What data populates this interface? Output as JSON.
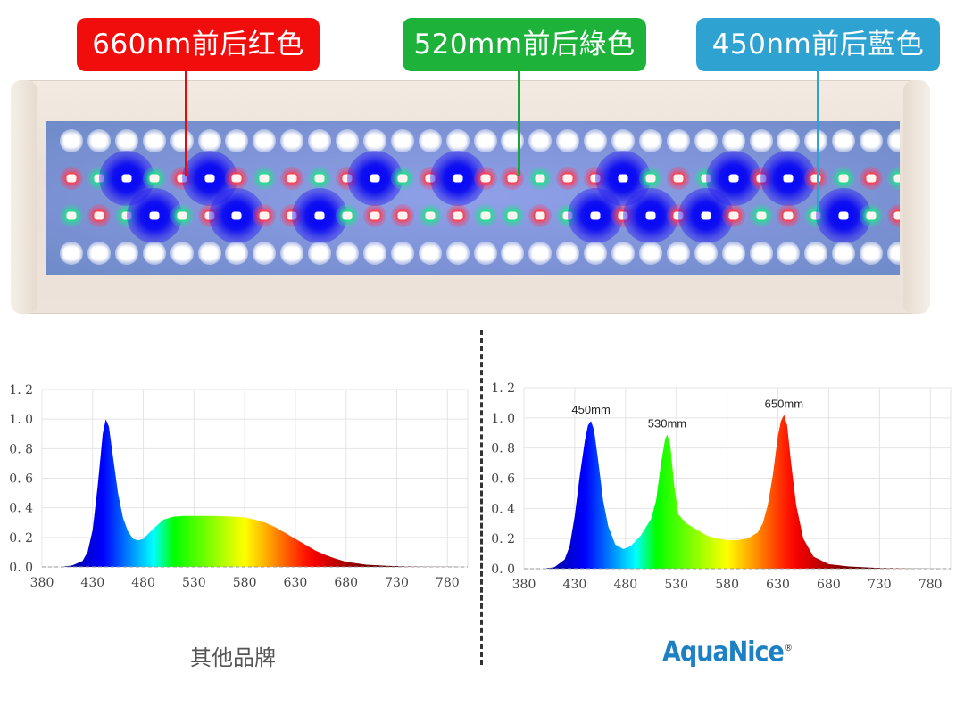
{
  "callouts": [
    {
      "label": "660nm前后红色",
      "color": "#f20d0d",
      "target": "red-led"
    },
    {
      "label": "520mm前后綠色",
      "color": "#1db23a",
      "target": "green-led"
    },
    {
      "label": "450nm前后藍色",
      "color": "#2ea3d2",
      "target": "blue-led"
    }
  ],
  "fixture": {
    "rows": {
      "row1": "WWWWWWWWWWWWWWWWWWWWWWWWWWWWWWW",
      "row2": "RGBGRBRGRGRBGRBRRGRRBGRGBRBRGRG",
      "row3": "GRGBGRBRRBGRRGRGGRGBRBRBRGRGBGR",
      "row4": "WWWWWWWWWWWWWWWWWWWWWWWWWWWWWWW"
    },
    "led_colors": {
      "W": "#ffffff",
      "R": "#ff3a4a",
      "G": "#22e08a",
      "B": "#1010ff"
    }
  },
  "captions": {
    "left": "其他品牌",
    "right_logo": "AquaNice",
    "right_logo_mark": "®"
  },
  "chart_data": [
    {
      "type": "area",
      "title": "其他品牌",
      "xlabel": "",
      "ylabel": "",
      "xlim": [
        380,
        800
      ],
      "ylim": [
        0,
        1.2
      ],
      "x_ticks": [
        380,
        430,
        480,
        530,
        580,
        630,
        680,
        730,
        780
      ],
      "y_ticks": [
        "0.0",
        "0.2",
        "0.4",
        "0.6",
        "0.8",
        "1.0",
        "1.2"
      ],
      "grid": true,
      "x": [
        380,
        400,
        410,
        420,
        425,
        430,
        435,
        440,
        443,
        446,
        450,
        455,
        460,
        465,
        470,
        475,
        480,
        490,
        500,
        510,
        520,
        530,
        550,
        570,
        580,
        590,
        600,
        610,
        620,
        630,
        640,
        650,
        660,
        670,
        680,
        700,
        720,
        740,
        760,
        800
      ],
      "values": [
        0,
        0,
        0.01,
        0.04,
        0.1,
        0.25,
        0.55,
        0.9,
        1.0,
        0.95,
        0.75,
        0.5,
        0.33,
        0.24,
        0.19,
        0.18,
        0.19,
        0.26,
        0.32,
        0.34,
        0.345,
        0.345,
        0.345,
        0.34,
        0.335,
        0.32,
        0.3,
        0.27,
        0.23,
        0.19,
        0.15,
        0.11,
        0.08,
        0.055,
        0.035,
        0.015,
        0.008,
        0.003,
        0.001,
        0
      ]
    },
    {
      "type": "area",
      "title": "AquaNice",
      "xlabel": "",
      "ylabel": "",
      "xlim": [
        380,
        800
      ],
      "ylim": [
        0,
        1.2
      ],
      "x_ticks": [
        380,
        430,
        480,
        530,
        580,
        630,
        680,
        730,
        780
      ],
      "y_ticks": [
        "0.0",
        "0.2",
        "0.4",
        "0.6",
        "0.8",
        "1.0",
        "1.2"
      ],
      "grid": true,
      "annotations": [
        {
          "text": "450mm",
          "x": 446,
          "y": 0.98
        },
        {
          "text": "530mm",
          "x": 521,
          "y": 0.89
        },
        {
          "text": "650mm",
          "x": 636,
          "y": 1.02
        }
      ],
      "x": [
        380,
        400,
        410,
        420,
        425,
        430,
        435,
        440,
        443,
        446,
        449,
        453,
        458,
        463,
        470,
        478,
        485,
        495,
        505,
        510,
        515,
        519,
        521,
        524,
        528,
        532,
        540,
        550,
        560,
        570,
        580,
        590,
        600,
        610,
        615,
        620,
        625,
        630,
        633,
        636,
        639,
        643,
        648,
        655,
        665,
        680,
        700,
        730,
        760,
        800
      ],
      "values": [
        0,
        0,
        0.01,
        0.06,
        0.15,
        0.35,
        0.62,
        0.85,
        0.95,
        0.98,
        0.92,
        0.72,
        0.45,
        0.28,
        0.16,
        0.13,
        0.15,
        0.22,
        0.33,
        0.45,
        0.7,
        0.86,
        0.89,
        0.82,
        0.55,
        0.36,
        0.3,
        0.26,
        0.22,
        0.2,
        0.19,
        0.19,
        0.2,
        0.24,
        0.3,
        0.42,
        0.62,
        0.88,
        0.98,
        1.02,
        0.95,
        0.7,
        0.42,
        0.2,
        0.08,
        0.03,
        0.015,
        0.005,
        0.001,
        0
      ]
    }
  ]
}
